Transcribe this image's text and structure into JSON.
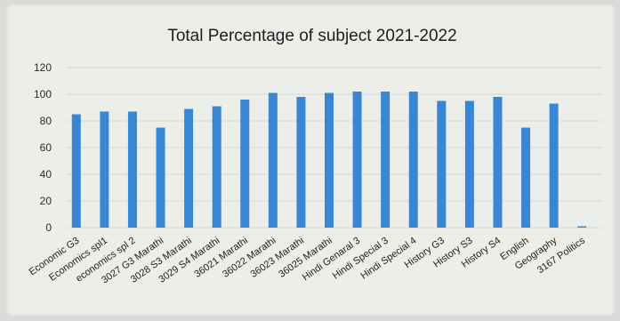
{
  "chart_data": {
    "type": "bar",
    "title": "Total Percentage of subject 2021-2022",
    "xlabel": "",
    "ylabel": "",
    "ylim": [
      0,
      120
    ],
    "yticks": [
      0,
      20,
      40,
      60,
      80,
      100,
      120
    ],
    "grid": true,
    "legend": "none",
    "bar_color": "#3a86d4",
    "categories": [
      "Economic G3",
      "Economics spl1",
      "economics spl 2",
      "3027 G3 Marathi",
      "3028 S3 Marathi",
      "3029 S4 Marathi",
      "36021 Marathi",
      "36022 Marathi",
      "36023 Marathi",
      "36025 Marathi",
      "Hindi Genaral 3",
      "Hindi Special 3",
      "Hindi Special 4",
      "History G3",
      "History S3",
      "History S4",
      "English",
      "Geography",
      "3167 Politics"
    ],
    "values": [
      85,
      87,
      87,
      75,
      89,
      91,
      96,
      101,
      98,
      101,
      102,
      102,
      102,
      95,
      95,
      98,
      75,
      93,
      1
    ]
  }
}
